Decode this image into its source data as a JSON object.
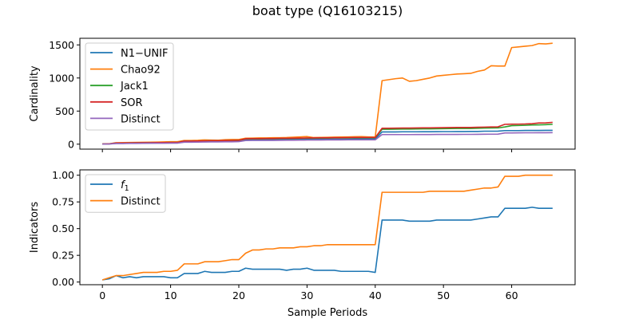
{
  "chart_data": {
    "title": "boat type (Q16103215)",
    "xlabel": "Sample Periods",
    "x_ticks": [
      0,
      10,
      20,
      30,
      40,
      50,
      60
    ],
    "xlim": [
      -3.3,
      69.3
    ],
    "panels": [
      {
        "type": "line",
        "ylabel": "Cardinality",
        "ylim": [
          -75,
          1600
        ],
        "y_ticks": [
          0,
          500,
          1000,
          1500
        ],
        "legend": "top-left",
        "x": [
          0,
          1,
          2,
          3,
          4,
          5,
          6,
          7,
          8,
          9,
          10,
          11,
          12,
          13,
          14,
          15,
          16,
          17,
          18,
          19,
          20,
          21,
          22,
          23,
          24,
          25,
          26,
          27,
          28,
          29,
          30,
          31,
          32,
          33,
          34,
          35,
          36,
          37,
          38,
          39,
          40,
          41,
          42,
          43,
          44,
          45,
          46,
          47,
          48,
          49,
          50,
          51,
          52,
          53,
          54,
          55,
          56,
          57,
          58,
          59,
          60,
          61,
          62,
          63,
          64,
          65,
          66
        ],
        "series": [
          {
            "name": "N1−UNIF",
            "color": "#1f77b4",
            "values": [
              1,
              4,
              12,
              12,
              14,
              14,
              15,
              16,
              17,
              17,
              18,
              18,
              35,
              36,
              38,
              40,
              42,
              42,
              45,
              45,
              48,
              65,
              66,
              66,
              68,
              68,
              70,
              70,
              72,
              73,
              74,
              75,
              76,
              76,
              77,
              77,
              77,
              78,
              78,
              78,
              78,
              185,
              185,
              185,
              187,
              187,
              187,
              188,
              188,
              189,
              190,
              190,
              191,
              191,
              192,
              192,
              196,
              196,
              197,
              205,
              205,
              205,
              207,
              208,
              208,
              209,
              209
            ]
          },
          {
            "name": "Chao92",
            "color": "#ff7f0e",
            "values": [
              2,
              6,
              22,
              24,
              25,
              27,
              28,
              30,
              32,
              34,
              38,
              38,
              55,
              55,
              58,
              65,
              62,
              60,
              68,
              70,
              70,
              90,
              92,
              94,
              95,
              97,
              98,
              100,
              105,
              110,
              115,
              100,
              102,
              104,
              106,
              108,
              110,
              112,
              114,
              110,
              108,
              960,
              975,
              990,
              1000,
              950,
              960,
              980,
              1000,
              1030,
              1040,
              1050,
              1060,
              1065,
              1070,
              1100,
              1120,
              1185,
              1180,
              1180,
              1460,
              1470,
              1480,
              1490,
              1520,
              1515,
              1525
            ]
          },
          {
            "name": "Jack1",
            "color": "#2ca02c",
            "values": [
              2,
              5,
              18,
              18,
              20,
              21,
              22,
              22,
              24,
              24,
              26,
              26,
              46,
              46,
              48,
              50,
              52,
              52,
              55,
              56,
              58,
              78,
              80,
              80,
              82,
              82,
              84,
              85,
              86,
              88,
              90,
              90,
              92,
              92,
              94,
              94,
              95,
              96,
              96,
              96,
              96,
              225,
              226,
              227,
              228,
              228,
              230,
              231,
              232,
              233,
              235,
              236,
              237,
              238,
              238,
              240,
              244,
              245,
              246,
              260,
              280,
              282,
              285,
              290,
              292,
              295,
              300
            ]
          },
          {
            "name": "SOR",
            "color": "#d62728",
            "values": [
              2,
              5,
              18,
              18,
              20,
              21,
              22,
              22,
              24,
              24,
              26,
              26,
              46,
              46,
              48,
              50,
              52,
              52,
              55,
              56,
              58,
              82,
              84,
              84,
              86,
              86,
              88,
              89,
              90,
              92,
              94,
              94,
              96,
              96,
              98,
              98,
              99,
              100,
              100,
              100,
              100,
              240,
              241,
              242,
              243,
              243,
              245,
              246,
              247,
              248,
              250,
              251,
              252,
              253,
              253,
              255,
              258,
              260,
              262,
              300,
              302,
              303,
              305,
              310,
              320,
              322,
              330
            ]
          },
          {
            "name": "Distinct",
            "color": "#9467bd",
            "values": [
              1,
              3,
              10,
              10,
              12,
              12,
              13,
              14,
              15,
              15,
              16,
              16,
              30,
              30,
              31,
              33,
              34,
              34,
              36,
              36,
              38,
              55,
              56,
              56,
              57,
              57,
              58,
              59,
              60,
              61,
              62,
              63,
              63,
              64,
              64,
              64,
              65,
              65,
              65,
              65,
              65,
              145,
              145,
              145,
              145,
              145,
              146,
              146,
              146,
              147,
              147,
              147,
              147,
              148,
              148,
              149,
              150,
              151,
              152,
              170,
              170,
              171,
              172,
              172,
              173,
              173,
              174
            ]
          }
        ]
      },
      {
        "type": "line",
        "ylabel": "Indicators",
        "ylim": [
          -0.025,
          1.05
        ],
        "y_ticks": [
          0.0,
          0.25,
          0.5,
          0.75,
          1.0
        ],
        "y_tick_labels": [
          "0.00",
          "0.25",
          "0.50",
          "0.75",
          "1.00"
        ],
        "legend": "top-left",
        "x": [
          0,
          1,
          2,
          3,
          4,
          5,
          6,
          7,
          8,
          9,
          10,
          11,
          12,
          13,
          14,
          15,
          16,
          17,
          18,
          19,
          20,
          21,
          22,
          23,
          24,
          25,
          26,
          27,
          28,
          29,
          30,
          31,
          32,
          33,
          34,
          35,
          36,
          37,
          38,
          39,
          40,
          41,
          42,
          43,
          44,
          45,
          46,
          47,
          48,
          49,
          50,
          51,
          52,
          53,
          54,
          55,
          56,
          57,
          58,
          59,
          60,
          61,
          62,
          63,
          64,
          65,
          66
        ],
        "series": [
          {
            "name": "f1",
            "name_base": "f",
            "name_sub": "1",
            "color": "#1f77b4",
            "values": [
              0.02,
              0.03,
              0.06,
              0.04,
              0.05,
              0.04,
              0.05,
              0.05,
              0.05,
              0.05,
              0.04,
              0.04,
              0.08,
              0.08,
              0.08,
              0.1,
              0.09,
              0.09,
              0.09,
              0.1,
              0.1,
              0.13,
              0.12,
              0.12,
              0.12,
              0.12,
              0.12,
              0.11,
              0.12,
              0.12,
              0.13,
              0.11,
              0.11,
              0.11,
              0.11,
              0.1,
              0.1,
              0.1,
              0.1,
              0.1,
              0.09,
              0.58,
              0.58,
              0.58,
              0.58,
              0.57,
              0.57,
              0.57,
              0.57,
              0.58,
              0.58,
              0.58,
              0.58,
              0.58,
              0.58,
              0.59,
              0.6,
              0.61,
              0.61,
              0.69,
              0.69,
              0.69,
              0.69,
              0.7,
              0.69,
              0.69,
              0.69
            ]
          },
          {
            "name": "Distinct",
            "color": "#ff7f0e",
            "values": [
              0.02,
              0.04,
              0.06,
              0.06,
              0.07,
              0.08,
              0.09,
              0.09,
              0.09,
              0.1,
              0.1,
              0.11,
              0.17,
              0.17,
              0.17,
              0.19,
              0.19,
              0.19,
              0.2,
              0.21,
              0.21,
              0.27,
              0.3,
              0.3,
              0.31,
              0.31,
              0.32,
              0.32,
              0.32,
              0.33,
              0.33,
              0.34,
              0.34,
              0.35,
              0.35,
              0.35,
              0.35,
              0.35,
              0.35,
              0.35,
              0.35,
              0.84,
              0.84,
              0.84,
              0.84,
              0.84,
              0.84,
              0.84,
              0.85,
              0.85,
              0.85,
              0.85,
              0.85,
              0.85,
              0.86,
              0.87,
              0.88,
              0.88,
              0.89,
              0.99,
              0.99,
              0.99,
              1.0,
              1.0,
              1.0,
              1.0,
              1.0
            ]
          }
        ]
      }
    ]
  }
}
